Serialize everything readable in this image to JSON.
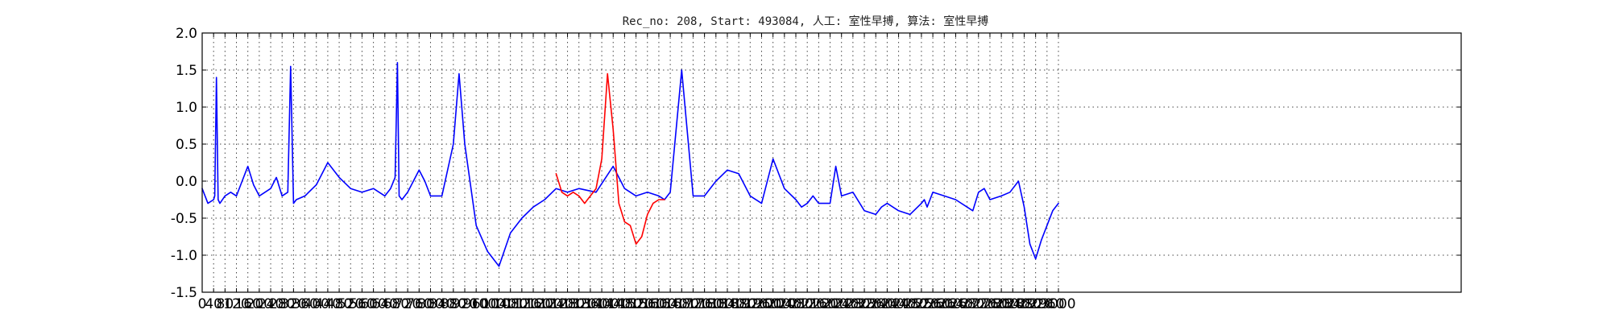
{
  "chart_data": {
    "type": "line",
    "title": "Rec_no: 208, Start: 493084, 人工: 室性早搏, 算法: 室性早搏",
    "xlabel": "",
    "ylabel": "",
    "xlim": [
      0,
      3000
    ],
    "ylim": [
      -1.5,
      2.0
    ],
    "grid": true,
    "yticks": [
      -1.5,
      -1.0,
      -0.5,
      0.0,
      0.5,
      1.0,
      1.5,
      2.0
    ],
    "ytick_labels": [
      "-1.5",
      "-1.0",
      "-0.5",
      "0.0",
      "0.5",
      "1.0",
      "1.5",
      "2.0"
    ],
    "xticks": [
      0,
      40,
      80,
      120,
      160,
      200,
      240,
      280,
      320,
      360,
      400,
      440,
      480,
      520,
      560,
      600,
      640,
      680,
      720,
      760,
      800,
      840,
      880,
      920,
      960,
      1000,
      1040,
      1080,
      1120,
      1160,
      1200,
      1240,
      1280,
      1320,
      1360,
      1400,
      1440,
      1480,
      1520,
      1560,
      1600,
      1640,
      1680,
      1720,
      1760,
      1800,
      1840,
      1880,
      1920,
      1960,
      2000,
      2040,
      2080,
      2120,
      2160,
      2200,
      2240,
      2280,
      2320,
      2360,
      2400,
      2440,
      2480,
      2520,
      2560,
      2600,
      2640,
      2680,
      2720,
      2760,
      2800,
      2840,
      2880,
      2920,
      2960,
      3000
    ],
    "xtick_labels": [
      "0",
      "40",
      "80",
      "120",
      "160",
      "200",
      "240",
      "280",
      "320",
      "360",
      "400",
      "440",
      "480",
      "520",
      "560",
      "600",
      "640",
      "680",
      "720",
      "760",
      "800",
      "840",
      "880",
      "920",
      "960",
      "1000",
      "1040",
      "1080",
      "1120",
      "1160",
      "1200",
      "1240",
      "1280",
      "1320",
      "1360",
      "1400",
      "1440",
      "1480",
      "1520",
      "1560",
      "1600",
      "1640",
      "1680",
      "1720",
      "1760",
      "1800",
      "1840",
      "1880",
      "1920",
      "1960",
      "2000",
      "2040",
      "2080",
      "2120",
      "2160",
      "2200",
      "2240",
      "2280",
      "2320",
      "2360",
      "2400",
      "2440",
      "2480",
      "2520",
      "2560",
      "2600",
      "2640",
      "2680",
      "2720",
      "2760",
      "2800",
      "2840",
      "2880",
      "2920",
      "2960",
      "3000"
    ],
    "series": [
      {
        "color": "#0000ff",
        "x": [
          0,
          20,
          40,
          44,
          50,
          56,
          62,
          80,
          100,
          120,
          140,
          160,
          180,
          200,
          220,
          240,
          260,
          280,
          300,
          310,
          320,
          330,
          360,
          400,
          440,
          480,
          520,
          560,
          600,
          640,
          660,
          676,
          684,
          690,
          700,
          720,
          760,
          780,
          800,
          840,
          880,
          900,
          920,
          960,
          1000,
          1040,
          1080,
          1120,
          1160,
          1200,
          1240,
          1280,
          1320,
          1380,
          1440,
          1480,
          1520,
          1560,
          1600,
          1620,
          1640,
          1680,
          1720,
          1760,
          1800,
          1840,
          1880,
          1920,
          1960,
          2000,
          2040,
          2080,
          2100,
          2120,
          2140,
          2160,
          2200,
          2220,
          2240,
          2280,
          2320,
          2360,
          2380,
          2400,
          2440,
          2480,
          2520,
          2530,
          2540,
          2560,
          2600,
          2640,
          2680,
          2700,
          2720,
          2740,
          2760,
          2800,
          2830,
          2860,
          2880,
          2900,
          2920,
          2940,
          2960,
          2980,
          3000
        ],
        "y": [
          -0.1,
          -0.3,
          -0.25,
          -0.2,
          1.4,
          -0.25,
          -0.3,
          -0.2,
          -0.15,
          -0.2,
          0.0,
          0.2,
          -0.05,
          -0.2,
          -0.15,
          -0.1,
          0.05,
          -0.2,
          -0.15,
          1.55,
          -0.3,
          -0.25,
          -0.2,
          -0.05,
          0.25,
          0.05,
          -0.1,
          -0.15,
          -0.1,
          -0.2,
          -0.1,
          0.05,
          1.6,
          -0.2,
          -0.25,
          -0.15,
          0.15,
          0.0,
          -0.2,
          -0.2,
          0.5,
          1.45,
          0.5,
          -0.6,
          -0.95,
          -1.15,
          -0.7,
          -0.5,
          -0.35,
          -0.25,
          -0.1,
          -0.15,
          -0.1,
          -0.15,
          0.2,
          -0.1,
          -0.2,
          -0.15,
          -0.2,
          -0.25,
          -0.15,
          1.5,
          -0.2,
          -0.2,
          0.0,
          0.15,
          0.1,
          -0.2,
          -0.3,
          0.3,
          -0.1,
          -0.25,
          -0.35,
          -0.3,
          -0.2,
          -0.3,
          -0.3,
          0.2,
          -0.2,
          -0.15,
          -0.4,
          -0.45,
          -0.35,
          -0.3,
          -0.4,
          -0.45,
          -0.3,
          -0.25,
          -0.35,
          -0.15,
          -0.2,
          -0.25,
          -0.35,
          -0.4,
          -0.15,
          -0.1,
          -0.25,
          -0.2,
          -0.15,
          0.0,
          -0.35,
          -0.85,
          -1.05,
          -0.8,
          -0.6,
          -0.4,
          -0.3
        ]
      },
      {
        "color": "#ff0000",
        "x": [
          1240,
          1260,
          1280,
          1300,
          1320,
          1340,
          1360,
          1380,
          1400,
          1420,
          1440,
          1460,
          1480,
          1500,
          1520,
          1540,
          1560,
          1580,
          1600,
          1620
        ],
        "y": [
          0.1,
          -0.15,
          -0.2,
          -0.15,
          -0.2,
          -0.3,
          -0.2,
          -0.1,
          0.3,
          1.45,
          0.7,
          -0.3,
          -0.55,
          -0.6,
          -0.85,
          -0.75,
          -0.45,
          -0.3,
          -0.25,
          -0.25
        ]
      }
    ]
  }
}
